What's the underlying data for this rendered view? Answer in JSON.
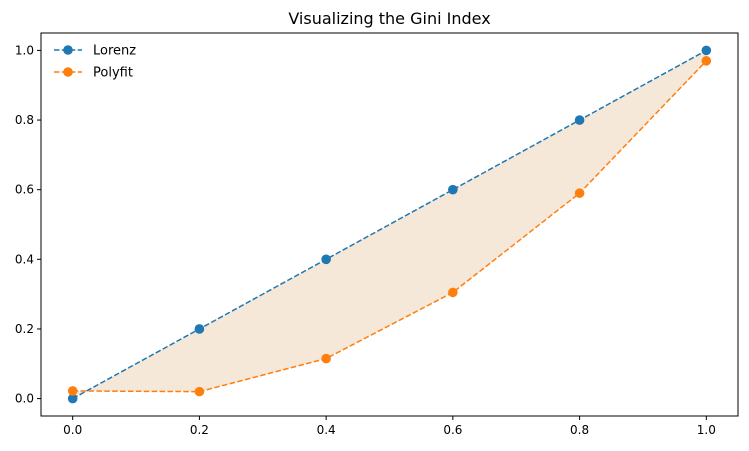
{
  "chart_data": {
    "type": "line",
    "title": "Visualizing the Gini Index",
    "xlabel": "",
    "ylabel": "",
    "xlim": [
      -0.05,
      1.05
    ],
    "ylim": [
      -0.05,
      1.05
    ],
    "xticks": [
      0.0,
      0.2,
      0.4,
      0.6,
      0.8,
      1.0
    ],
    "xtick_labels": [
      "0.0",
      "0.2",
      "0.4",
      "0.6",
      "0.8",
      "1.0"
    ],
    "yticks": [
      0.0,
      0.2,
      0.4,
      0.6,
      0.8,
      1.0
    ],
    "ytick_labels": [
      "0.0",
      "0.2",
      "0.4",
      "0.6",
      "0.8",
      "1.0"
    ],
    "grid": false,
    "legend_position": "top-left",
    "x": [
      0.0,
      0.2,
      0.4,
      0.6,
      0.8,
      1.0
    ],
    "series": [
      {
        "name": "Lorenz",
        "color": "#1f77b4",
        "linestyle": "dashed",
        "marker": "circle",
        "values": [
          0.0,
          0.2,
          0.4,
          0.6,
          0.8,
          1.0
        ]
      },
      {
        "name": "Polyfit",
        "color": "#ff7f0e",
        "linestyle": "dashed",
        "marker": "circle",
        "values": [
          0.022,
          0.02,
          0.115,
          0.305,
          0.59,
          0.97
        ]
      }
    ],
    "fill_between": {
      "series": [
        "Lorenz",
        "Polyfit"
      ],
      "color": "#f5e8d8"
    }
  }
}
